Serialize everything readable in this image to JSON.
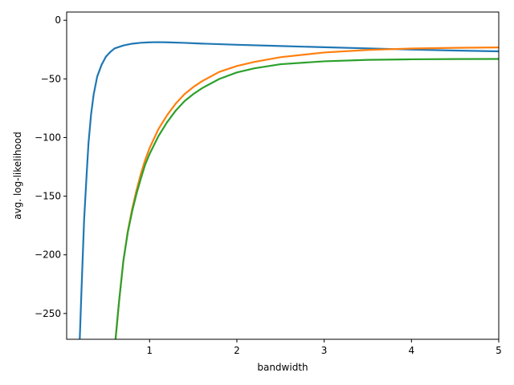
{
  "chart_data": {
    "type": "line",
    "title": "",
    "xlabel": "bandwidth",
    "ylabel": "avg. log-likelihood",
    "xlim": [
      0.05,
      5
    ],
    "ylim": [
      -272,
      7
    ],
    "xticks": [
      1,
      2,
      3,
      4,
      5
    ],
    "xtick_labels": [
      "1",
      "2",
      "3",
      "4",
      "5"
    ],
    "yticks": [
      0,
      -50,
      -100,
      -150,
      -200,
      -250
    ],
    "ytick_labels": [
      "0",
      "−50",
      "−100",
      "−150",
      "−200",
      "−250"
    ],
    "grid": false,
    "legend": "none",
    "series": [
      {
        "color": "#1f77b4",
        "x": [
          0.2,
          0.22,
          0.25,
          0.28,
          0.3,
          0.33,
          0.36,
          0.4,
          0.45,
          0.5,
          0.55,
          0.6,
          0.7,
          0.8,
          0.9,
          1.0,
          1.1,
          1.2,
          1.4,
          1.6,
          1.8,
          2.0,
          2.5,
          3.0,
          3.5,
          4.0,
          4.5,
          5.0
        ],
        "y": [
          -272,
          -230,
          -170,
          -130,
          -105,
          -80,
          -63,
          -48,
          -38,
          -31,
          -27,
          -24,
          -21.5,
          -20,
          -19.2,
          -18.8,
          -18.7,
          -18.8,
          -19.3,
          -19.9,
          -20.4,
          -20.9,
          -22,
          -23,
          -24,
          -25,
          -25.8,
          -26.5
        ]
      },
      {
        "color": "#ff7f0e",
        "x": [
          0.61,
          0.65,
          0.7,
          0.75,
          0.8,
          0.85,
          0.9,
          0.95,
          1.0,
          1.1,
          1.2,
          1.3,
          1.4,
          1.5,
          1.6,
          1.8,
          2.0,
          2.2,
          2.5,
          3.0,
          3.5,
          4.0,
          4.5,
          5.0
        ],
        "y": [
          -272,
          -240,
          -205,
          -180,
          -161,
          -145,
          -131,
          -119,
          -109,
          -93,
          -81,
          -71,
          -63,
          -57,
          -52,
          -44,
          -39,
          -35.5,
          -31.5,
          -27.5,
          -25.3,
          -24.1,
          -23.5,
          -23.2
        ]
      },
      {
        "color": "#2ca02c",
        "x": [
          0.61,
          0.65,
          0.7,
          0.75,
          0.8,
          0.85,
          0.9,
          0.95,
          1.0,
          1.1,
          1.2,
          1.3,
          1.4,
          1.5,
          1.6,
          1.8,
          2.0,
          2.2,
          2.5,
          3.0,
          3.5,
          4.0,
          4.5,
          5.0
        ],
        "y": [
          -272,
          -240,
          -205,
          -181,
          -163,
          -148,
          -135,
          -123,
          -114,
          -99,
          -87,
          -77,
          -69,
          -63,
          -58,
          -50,
          -44.5,
          -41,
          -37.5,
          -35,
          -33.8,
          -33.3,
          -33.1,
          -33
        ]
      }
    ]
  }
}
